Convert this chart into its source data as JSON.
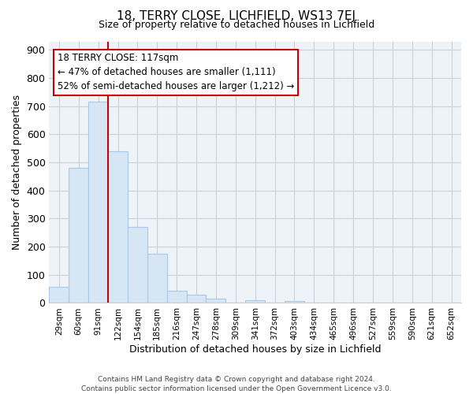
{
  "title": "18, TERRY CLOSE, LICHFIELD, WS13 7EJ",
  "subtitle": "Size of property relative to detached houses in Lichfield",
  "xlabel": "Distribution of detached houses by size in Lichfield",
  "ylabel": "Number of detached properties",
  "bar_labels": [
    "29sqm",
    "60sqm",
    "91sqm",
    "122sqm",
    "154sqm",
    "185sqm",
    "216sqm",
    "247sqm",
    "278sqm",
    "309sqm",
    "341sqm",
    "372sqm",
    "403sqm",
    "434sqm",
    "465sqm",
    "496sqm",
    "527sqm",
    "559sqm",
    "590sqm",
    "621sqm",
    "652sqm"
  ],
  "bar_values": [
    58,
    480,
    715,
    540,
    270,
    175,
    42,
    30,
    15,
    0,
    10,
    0,
    6,
    0,
    0,
    0,
    0,
    0,
    0,
    0,
    0
  ],
  "bar_fill_color": "#d6e6f5",
  "bar_edge_color": "#a8c8e8",
  "vline_x": 2.5,
  "vline_color": "#cc0000",
  "ylim": [
    0,
    930
  ],
  "yticks": [
    0,
    100,
    200,
    300,
    400,
    500,
    600,
    700,
    800,
    900
  ],
  "annotation_line1": "18 TERRY CLOSE: 117sqm",
  "annotation_line2": "← 47% of detached houses are smaller (1,111)",
  "annotation_line3": "52% of semi-detached houses are larger (1,212) →",
  "footer_line1": "Contains HM Land Registry data © Crown copyright and database right 2024.",
  "footer_line2": "Contains public sector information licensed under the Open Government Licence v3.0.",
  "bg_color": "#ffffff",
  "plot_bg_color": "#eef3f8",
  "grid_color": "#c8d0d8"
}
